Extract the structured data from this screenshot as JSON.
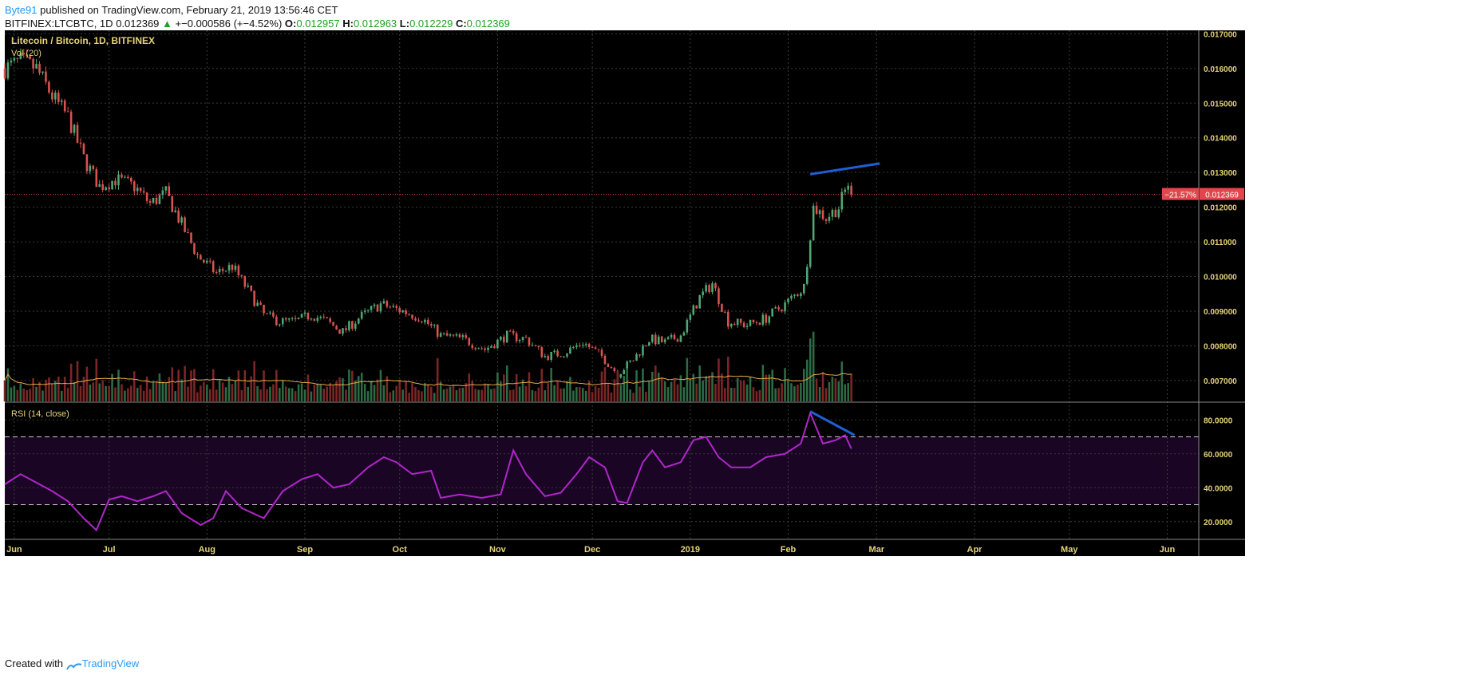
{
  "header": {
    "author": "Byte91",
    "published_text": " published on TradingView.com, February 21, 2019 13:56:46 CET",
    "symbol": "BITFINEX:LTCBTC, 1D",
    "last": "0.012369",
    "change_arrow": "▲",
    "change": "+−0.000586 (+−4.52%)",
    "o_label": "O:",
    "o_value": "0.012957",
    "h_label": "H:",
    "h_value": "0.012963",
    "l_label": "L:",
    "l_value": "0.012229",
    "c_label": "C:",
    "c_value": "0.012369"
  },
  "footer": {
    "created_with": "Created with",
    "brand": "TradingView"
  },
  "colors": {
    "background": "#000000",
    "grid": "#3a3a3a",
    "up": "#4fa874",
    "down": "#d9534f",
    "vol_up": "#2d6b45",
    "vol_down": "#7d2626",
    "vol_ma": "#e7a84a",
    "rsi_line": "#b026c9",
    "rsi_band": "#1a0525",
    "trendline": "#1f5fd6",
    "price_line": "#e0464c",
    "axis_text": "#e6d37a"
  },
  "chart_data": [
    {
      "type": "candlestick",
      "title": "Litecoin / Bitcoin, 1D, BITFINEX",
      "volume_label": "Vol (20)",
      "xlabels": [
        "Jun",
        "Jul",
        "Aug",
        "Sep",
        "Oct",
        "Nov",
        "Dec",
        "2019",
        "Feb",
        "Mar",
        "Apr",
        "May",
        "Jun"
      ],
      "x_range": [
        "2018-05-29",
        "2019-06-11"
      ],
      "ylim": [
        0.0064,
        0.0171
      ],
      "yticks": [
        "0.017000",
        "0.016000",
        "0.015000",
        "0.014000",
        "0.013000",
        "0.012000",
        "0.011000",
        "0.010000",
        "0.009000",
        "0.008000",
        "0.007000"
      ],
      "last_price": 0.012369,
      "last_price_label": "0.012369",
      "pct_change_label": "−21.57%",
      "close_path": [
        [
          "2018-05-29",
          0.016
        ],
        [
          "2018-06-03",
          0.0162
        ],
        [
          "2018-06-08",
          0.016
        ],
        [
          "2018-06-13",
          0.0152
        ],
        [
          "2018-06-18",
          0.0146
        ],
        [
          "2018-06-23",
          0.0134
        ],
        [
          "2018-06-28",
          0.0126
        ],
        [
          "2018-07-03",
          0.0128
        ],
        [
          "2018-07-09",
          0.0126
        ],
        [
          "2018-07-14",
          0.0121
        ],
        [
          "2018-07-19",
          0.0124
        ],
        [
          "2018-07-24",
          0.0115
        ],
        [
          "2018-07-29",
          0.0106
        ],
        [
          "2018-08-04",
          0.0101
        ],
        [
          "2018-08-09",
          0.0103
        ],
        [
          "2018-08-14",
          0.0096
        ],
        [
          "2018-08-19",
          0.0089
        ],
        [
          "2018-08-24",
          0.0087
        ],
        [
          "2018-08-29",
          0.0087
        ],
        [
          "2018-09-03",
          0.0089
        ],
        [
          "2018-09-08",
          0.0087
        ],
        [
          "2018-09-13",
          0.0084
        ],
        [
          "2018-09-18",
          0.0088
        ],
        [
          "2018-09-25",
          0.0092
        ],
        [
          "2018-10-02",
          0.009
        ],
        [
          "2018-10-08",
          0.0088
        ],
        [
          "2018-10-14",
          0.0083
        ],
        [
          "2018-10-21",
          0.0082
        ],
        [
          "2018-10-28",
          0.0079
        ],
        [
          "2018-11-04",
          0.0083
        ],
        [
          "2018-11-10",
          0.0082
        ],
        [
          "2018-11-16",
          0.0077
        ],
        [
          "2018-11-22",
          0.0078
        ],
        [
          "2018-11-28",
          0.0081
        ],
        [
          "2018-12-04",
          0.0077
        ],
        [
          "2018-12-09",
          0.0072
        ],
        [
          "2018-12-14",
          0.0076
        ],
        [
          "2018-12-19",
          0.0082
        ],
        [
          "2018-12-24",
          0.0081
        ],
        [
          "2018-12-29",
          0.0083
        ],
        [
          "2019-01-04",
          0.0094
        ],
        [
          "2019-01-08",
          0.0098
        ],
        [
          "2019-01-13",
          0.0087
        ],
        [
          "2019-01-19",
          0.0086
        ],
        [
          "2019-01-25",
          0.0088
        ],
        [
          "2019-01-31",
          0.0092
        ],
        [
          "2019-02-06",
          0.0097
        ],
        [
          "2019-02-09",
          0.012
        ],
        [
          "2019-02-13",
          0.0117
        ],
        [
          "2019-02-17",
          0.012
        ],
        [
          "2019-02-20",
          0.0127
        ],
        [
          "2019-02-21",
          0.012369
        ]
      ],
      "trendline": [
        [
          "2019-02-08",
          0.01295
        ],
        [
          "2019-03-02",
          0.01326
        ]
      ]
    },
    {
      "type": "line",
      "title": "RSI (14, close)",
      "ylim": [
        10,
        90
      ],
      "yticks": [
        "80.0000",
        "60.0000",
        "40.0000",
        "20.0000"
      ],
      "band": [
        30,
        70
      ],
      "series": [
        {
          "name": "RSI",
          "points": [
            [
              "2018-05-29",
              42
            ],
            [
              "2018-06-03",
              48
            ],
            [
              "2018-06-08",
              43
            ],
            [
              "2018-06-13",
              38
            ],
            [
              "2018-06-18",
              32
            ],
            [
              "2018-06-23",
              22
            ],
            [
              "2018-06-27",
              15
            ],
            [
              "2018-07-01",
              33
            ],
            [
              "2018-07-05",
              35
            ],
            [
              "2018-07-10",
              32
            ],
            [
              "2018-07-15",
              35
            ],
            [
              "2018-07-19",
              38
            ],
            [
              "2018-07-24",
              25
            ],
            [
              "2018-07-30",
              18
            ],
            [
              "2018-08-03",
              22
            ],
            [
              "2018-08-07",
              38
            ],
            [
              "2018-08-12",
              28
            ],
            [
              "2018-08-19",
              22
            ],
            [
              "2018-08-25",
              38
            ],
            [
              "2018-08-31",
              45
            ],
            [
              "2018-09-05",
              48
            ],
            [
              "2018-09-10",
              40
            ],
            [
              "2018-09-15",
              42
            ],
            [
              "2018-09-21",
              52
            ],
            [
              "2018-09-26",
              58
            ],
            [
              "2018-09-30",
              55
            ],
            [
              "2018-10-05",
              48
            ],
            [
              "2018-10-11",
              50
            ],
            [
              "2018-10-14",
              34
            ],
            [
              "2018-10-20",
              36
            ],
            [
              "2018-10-27",
              34
            ],
            [
              "2018-11-02",
              36
            ],
            [
              "2018-11-06",
              62
            ],
            [
              "2018-11-10",
              48
            ],
            [
              "2018-11-16",
              35
            ],
            [
              "2018-11-21",
              37
            ],
            [
              "2018-11-26",
              48
            ],
            [
              "2018-11-30",
              58
            ],
            [
              "2018-12-05",
              52
            ],
            [
              "2018-12-09",
              32
            ],
            [
              "2018-12-12",
              31
            ],
            [
              "2018-12-17",
              55
            ],
            [
              "2018-12-20",
              62
            ],
            [
              "2018-12-24",
              52
            ],
            [
              "2018-12-29",
              55
            ],
            [
              "2019-01-02",
              68
            ],
            [
              "2019-01-06",
              70
            ],
            [
              "2019-01-10",
              58
            ],
            [
              "2019-01-14",
              52
            ],
            [
              "2019-01-20",
              52
            ],
            [
              "2019-01-25",
              58
            ],
            [
              "2019-01-31",
              60
            ],
            [
              "2019-02-05",
              66
            ],
            [
              "2019-02-08",
              84
            ],
            [
              "2019-02-12",
              66
            ],
            [
              "2019-02-16",
              68
            ],
            [
              "2019-02-19",
              71
            ],
            [
              "2019-02-21",
              63
            ]
          ]
        }
      ],
      "trendline": [
        [
          "2019-02-08",
          85
        ],
        [
          "2019-02-22",
          71
        ]
      ]
    }
  ]
}
